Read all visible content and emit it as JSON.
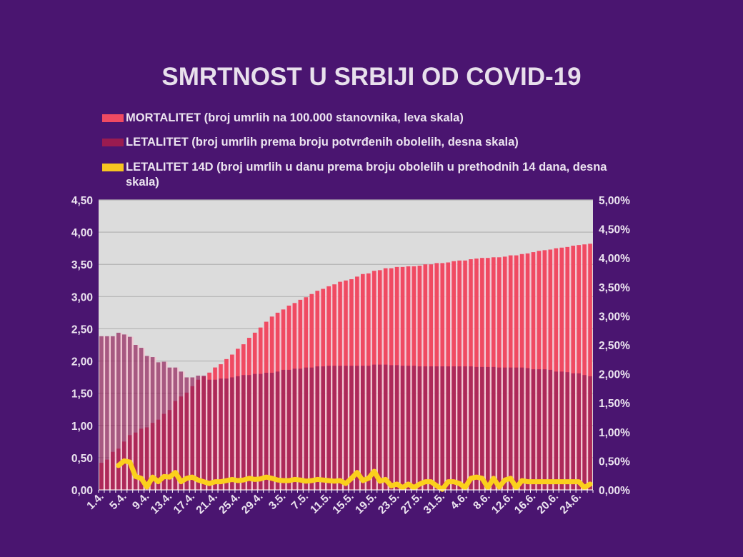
{
  "chart_data": {
    "type": "bar",
    "title": "SMRTNOST U SRBIJI OD COVID-19",
    "colors": {
      "background": "#4a1570",
      "plot_background": "#dcdcdc",
      "mortalitet": "#f04a62",
      "letalitet": "#8e1a55",
      "letalitet_14d": "#fbd01c"
    },
    "categories": [
      "1.4.",
      "2.4.",
      "3.4.",
      "4.4.",
      "5.4.",
      "6.4.",
      "7.4.",
      "8.4.",
      "9.4.",
      "10.4.",
      "11.4.",
      "12.4.",
      "13.4.",
      "14.4.",
      "15.4.",
      "16.4.",
      "17.4.",
      "18.4.",
      "19.4.",
      "20.4.",
      "21.4.",
      "22.4.",
      "23.4.",
      "24.4.",
      "25.4.",
      "26.4.",
      "27.4.",
      "28.4.",
      "29.4.",
      "30.4.",
      "1.5.",
      "2.5.",
      "3.5.",
      "4.5.",
      "5.5.",
      "6.5.",
      "7.5.",
      "8.5.",
      "9.5.",
      "10.5.",
      "11.5.",
      "12.5.",
      "13.5.",
      "14.5.",
      "15.5.",
      "16.5.",
      "17.5.",
      "18.5.",
      "19.5.",
      "20.5.",
      "21.5.",
      "22.5.",
      "23.5.",
      "24.5.",
      "25.5.",
      "26.5.",
      "27.5.",
      "28.5.",
      "29.5.",
      "30.5.",
      "31.5.",
      "1.6.",
      "2.6.",
      "3.6.",
      "4.6.",
      "5.6.",
      "6.6.",
      "7.6.",
      "8.6.",
      "9.6.",
      "10.6.",
      "11.6.",
      "12.6.",
      "13.6.",
      "14.6.",
      "15.6.",
      "16.6.",
      "17.6.",
      "18.6.",
      "19.6.",
      "20.6.",
      "21.6.",
      "22.6.",
      "23.6.",
      "24.6.",
      "25.6.",
      "26.6."
    ],
    "tick_label_every": 4,
    "series": [
      {
        "name": "MORTALITET (broj umrlih na 100.000 stanovnika, leva skala)",
        "type": "bar",
        "axis": "left",
        "values": [
          0.42,
          0.47,
          0.59,
          0.64,
          0.75,
          0.85,
          0.89,
          0.95,
          0.97,
          1.04,
          1.09,
          1.18,
          1.24,
          1.38,
          1.45,
          1.51,
          1.61,
          1.71,
          1.76,
          1.82,
          1.9,
          1.95,
          2.03,
          2.1,
          2.19,
          2.26,
          2.36,
          2.44,
          2.52,
          2.61,
          2.69,
          2.75,
          2.8,
          2.86,
          2.9,
          2.95,
          2.99,
          3.04,
          3.09,
          3.12,
          3.16,
          3.19,
          3.23,
          3.25,
          3.27,
          3.31,
          3.35,
          3.36,
          3.4,
          3.41,
          3.44,
          3.44,
          3.46,
          3.46,
          3.47,
          3.47,
          3.48,
          3.5,
          3.5,
          3.52,
          3.52,
          3.53,
          3.55,
          3.56,
          3.56,
          3.58,
          3.59,
          3.6,
          3.6,
          3.61,
          3.61,
          3.62,
          3.64,
          3.64,
          3.66,
          3.67,
          3.69,
          3.71,
          3.72,
          3.73,
          3.75,
          3.76,
          3.77,
          3.79,
          3.8,
          3.81,
          3.82
        ]
      },
      {
        "name": "LETALITET (broj umrlih prema broju potvrđenih obolelih, desna skala)",
        "type": "bar",
        "axis": "right",
        "values": [
          2.65,
          2.65,
          2.65,
          2.71,
          2.68,
          2.64,
          2.5,
          2.45,
          2.31,
          2.29,
          2.2,
          2.21,
          2.11,
          2.11,
          2.04,
          1.94,
          1.94,
          1.97,
          1.97,
          1.9,
          1.9,
          1.92,
          1.92,
          1.94,
          1.96,
          1.98,
          1.98,
          2.0,
          2.0,
          2.02,
          2.02,
          2.04,
          2.07,
          2.07,
          2.09,
          2.09,
          2.11,
          2.11,
          2.13,
          2.13,
          2.14,
          2.14,
          2.14,
          2.14,
          2.14,
          2.14,
          2.14,
          2.14,
          2.16,
          2.16,
          2.16,
          2.15,
          2.15,
          2.14,
          2.14,
          2.14,
          2.13,
          2.13,
          2.13,
          2.13,
          2.13,
          2.13,
          2.13,
          2.13,
          2.13,
          2.13,
          2.12,
          2.12,
          2.12,
          2.12,
          2.11,
          2.11,
          2.11,
          2.11,
          2.11,
          2.1,
          2.08,
          2.08,
          2.08,
          2.07,
          2.04,
          2.04,
          2.03,
          2.01,
          2.01,
          1.98,
          1.96
        ]
      },
      {
        "name": "LETALITET 14D (broj umrlih u danu prema broju obolelih u prethodnih 14 dana, desna skala)",
        "type": "line",
        "axis": "right",
        "values": [
          null,
          null,
          null,
          0.42,
          0.5,
          0.48,
          0.23,
          0.2,
          0.05,
          0.22,
          0.14,
          0.23,
          0.22,
          0.3,
          0.14,
          0.2,
          0.22,
          0.17,
          0.14,
          0.11,
          0.14,
          0.14,
          0.16,
          0.18,
          0.16,
          0.17,
          0.2,
          0.18,
          0.19,
          0.22,
          0.2,
          0.17,
          0.16,
          0.16,
          0.18,
          0.17,
          0.15,
          0.16,
          0.18,
          0.17,
          0.16,
          0.15,
          0.16,
          0.11,
          0.2,
          0.3,
          0.16,
          0.2,
          0.32,
          0.15,
          0.18,
          0.07,
          0.1,
          0.04,
          0.1,
          0.04,
          0.1,
          0.14,
          0.14,
          0.07,
          0.01,
          0.14,
          0.14,
          0.11,
          0.04,
          0.2,
          0.22,
          0.2,
          0.04,
          0.2,
          0.05,
          0.17,
          0.2,
          0.04,
          0.16,
          0.14,
          0.14,
          0.14,
          0.14,
          0.14,
          0.14,
          0.14,
          0.14,
          0.14,
          0.14,
          0.04,
          0.1
        ]
      }
    ],
    "left_axis": {
      "ylim": [
        0,
        4.5
      ],
      "ticks": [
        "0,00",
        "0,50",
        "1,00",
        "1,50",
        "2,00",
        "2,50",
        "3,00",
        "3,50",
        "4,00",
        "4,50"
      ]
    },
    "right_axis": {
      "ylim": [
        0,
        5
      ],
      "unit": "%",
      "ticks": [
        "0,00%",
        "0,50%",
        "1,00%",
        "1,50%",
        "2,00%",
        "2,50%",
        "3,00%",
        "3,50%",
        "4,00%",
        "4,50%",
        "5,00%"
      ]
    },
    "grid": true,
    "legend_position": "top"
  },
  "legend": [
    {
      "label": "MORTALITET (broj umrlih na 100.000 stanovnika, leva skala)"
    },
    {
      "label": "LETALITET (broj umrlih prema broju potvrđenih obolelih, desna skala)"
    },
    {
      "label": "LETALITET 14D (broj umrlih u danu prema broju obolelih u prethodnih 14 dana, desna skala)"
    }
  ]
}
